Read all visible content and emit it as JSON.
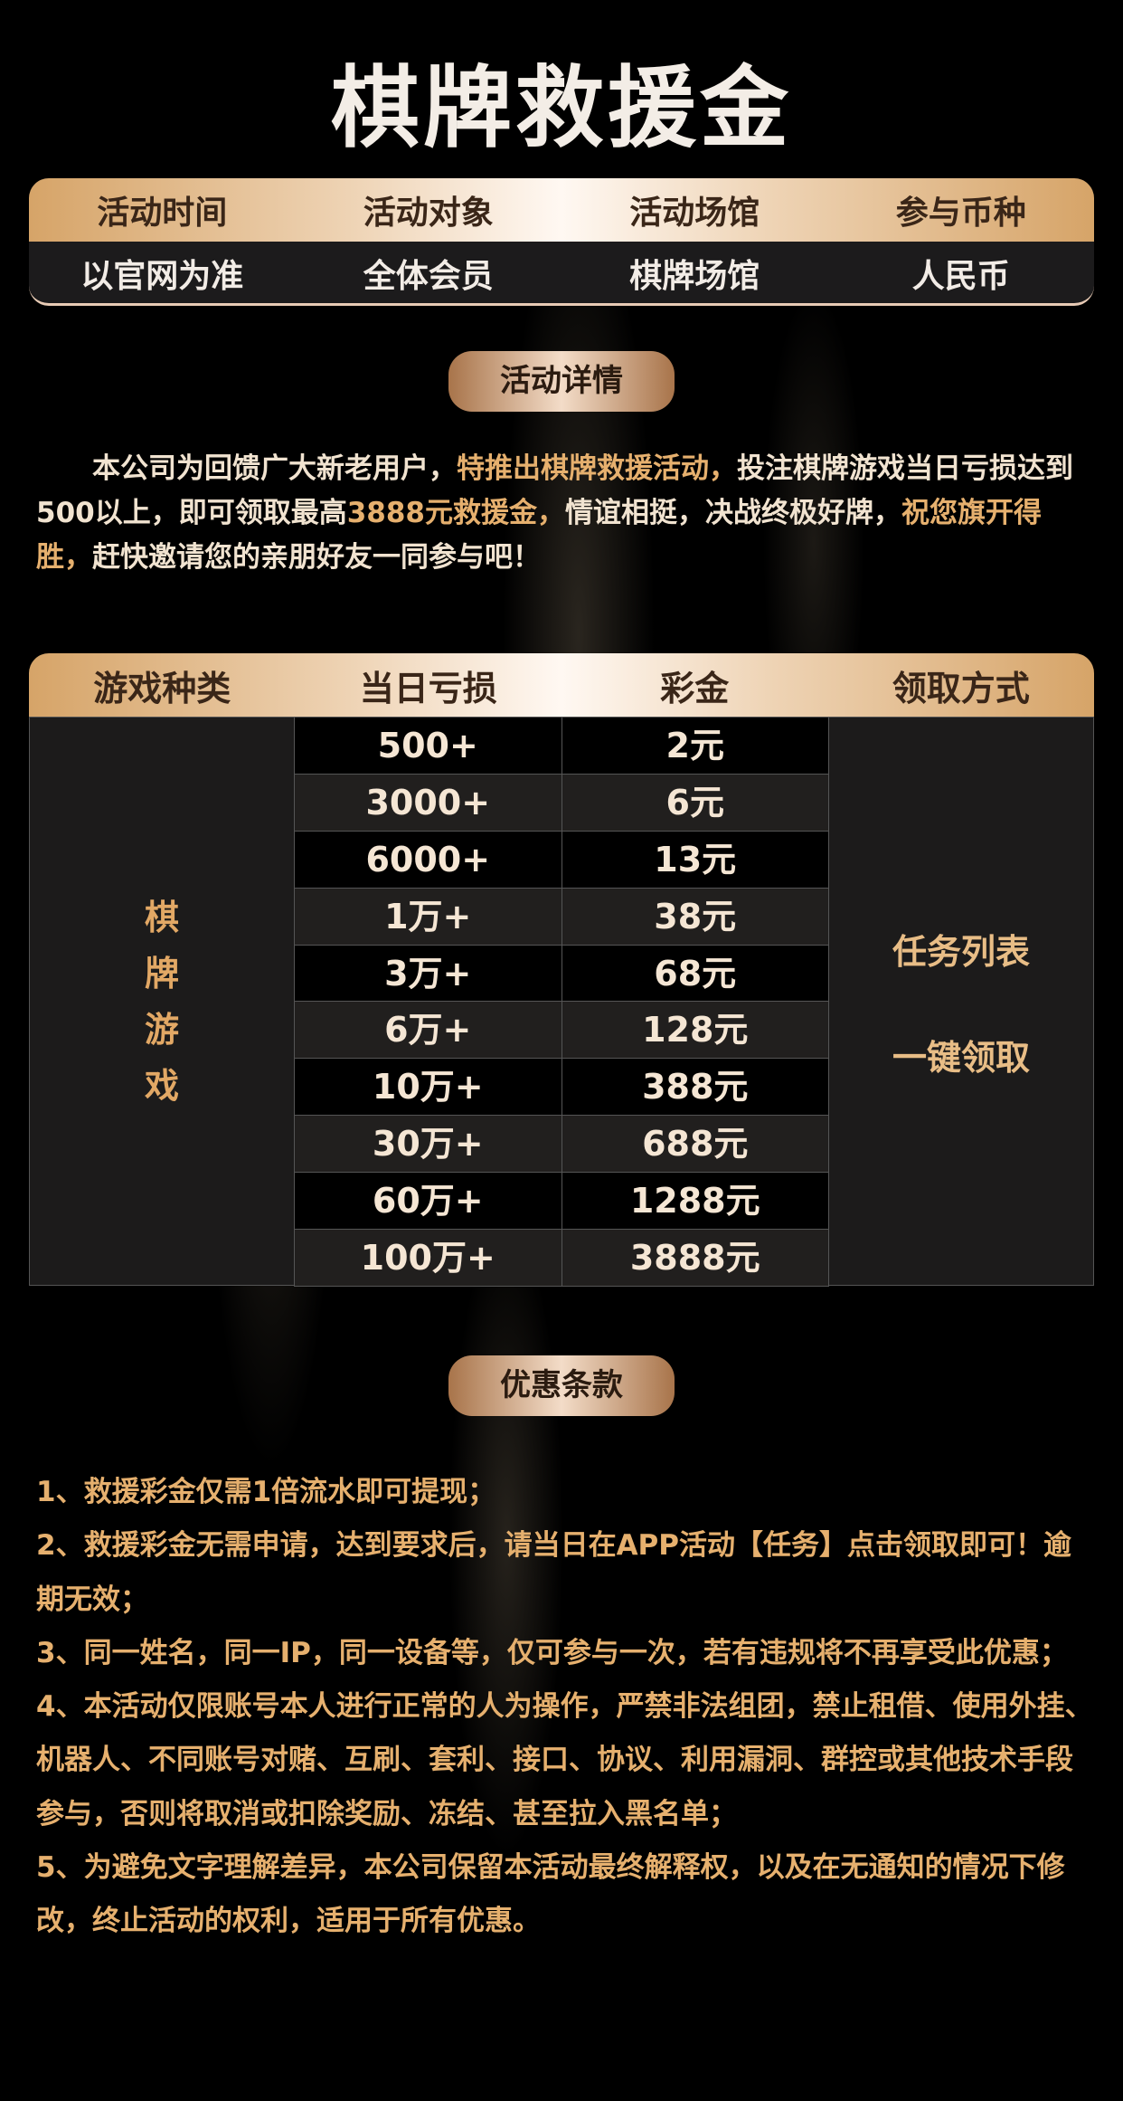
{
  "title": "棋牌救援金",
  "info": {
    "headers": [
      "活动时间",
      "活动对象",
      "活动场馆",
      "参与币种"
    ],
    "values": [
      "以官网为准",
      "全体会员",
      "棋牌场馆",
      "人民币"
    ]
  },
  "details_button": "活动详情",
  "details": {
    "p1": "本公司为回馈广大新老用户，",
    "p2": "特推出棋牌救援活动，",
    "p3": "投注棋牌游戏当日亏损达到500以上，即可领取最高",
    "p4": "3888元救援金，",
    "p5": "情谊相挺，决战终极好牌，",
    "p6": "祝您旗开得胜，",
    "p7": "赶快邀请您的亲朋好友一同参与吧！"
  },
  "table": {
    "headers": [
      "游戏种类",
      "当日亏损",
      "彩金",
      "领取方式"
    ],
    "category": [
      "棋",
      "牌",
      "游",
      "戏"
    ],
    "rows": [
      [
        "500+",
        "2元"
      ],
      [
        "3000+",
        "6元"
      ],
      [
        "6000+",
        "13元"
      ],
      [
        "1万+",
        "38元"
      ],
      [
        "3万+",
        "68元"
      ],
      [
        "6万+",
        "128元"
      ],
      [
        "10万+",
        "388元"
      ],
      [
        "30万+",
        "688元"
      ],
      [
        "60万+",
        "1288元"
      ],
      [
        "100万+",
        "3888元"
      ]
    ],
    "method": [
      "任务列表",
      "一键领取"
    ]
  },
  "terms_button": "优惠条款",
  "terms": [
    "1、救援彩金仅需1倍流水即可提现；",
    "2、救援彩金无需申请，达到要求后，请当日在APP活动【任务】点击领取即可！逾期无效；",
    "3、同一姓名，同一IP，同一设备等，仅可参与一次，若有违规将不再享受此优惠；",
    "4、本活动仅限账号本人进行正常的人为操作，严禁非法组团，禁止租借、使用外挂、机器人、不同账号对赌、互刷、套利、接口、协议、利用漏洞、群控或其他技术手段参与，否则将取消或扣除奖励、冻结、甚至拉入黑名单；",
    "5、为避免文字理解差异，本公司保留本活动最终解释权，以及在无通知的情况下修改，终止活动的权利，适用于所有优惠。"
  ],
  "colors": {
    "gold": "#e6b06e",
    "background": "#000000",
    "panel": "#1c1b1c"
  }
}
